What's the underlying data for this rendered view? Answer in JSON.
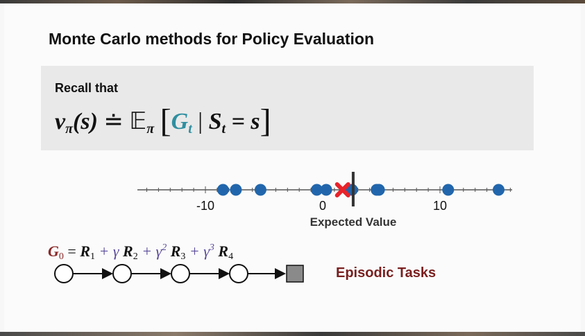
{
  "title": "Monte Carlo methods for Policy Evaluation",
  "recall": {
    "label": "Recall that",
    "formula": {
      "v": "v",
      "pi_sub": "π",
      "s_arg": "(s)",
      "doteq": "≐",
      "E": "𝔼",
      "E_sub": "π",
      "lbracket": "[",
      "G": "G",
      "G_sub": "t",
      "bar": "|",
      "S": "S",
      "S_sub": "t",
      "eq": "= s",
      "rbracket": "]"
    }
  },
  "number_line": {
    "tick_labels": [
      "-10",
      "0",
      "10"
    ],
    "axis_label": "Expected Value",
    "samples": [
      -8.5,
      -7.4,
      -5.3,
      -0.5,
      0.3,
      2.5,
      4.6,
      4.8,
      10.7,
      15.0
    ],
    "estimate": 1.7,
    "expected_value": 2.6,
    "colors": {
      "sample": "#2166ac",
      "estimate": "#e8232a",
      "expected": "#333333"
    }
  },
  "return_equation": {
    "G": "G",
    "G_sub": "0",
    "eq": " = ",
    "r1": "R",
    "r1_sub": "1",
    "plus_gamma": "+ γ",
    "r2": "R",
    "r2_sub": "2",
    "plus_gamma2": "+ γ",
    "gamma2_sup": "2",
    "r3": "R",
    "r3_sub": "3",
    "plus_gamma3": "+ γ",
    "gamma3_sup": "3",
    "r4": "R",
    "r4_sub": "4"
  },
  "episodic_label": "Episodic Tasks"
}
